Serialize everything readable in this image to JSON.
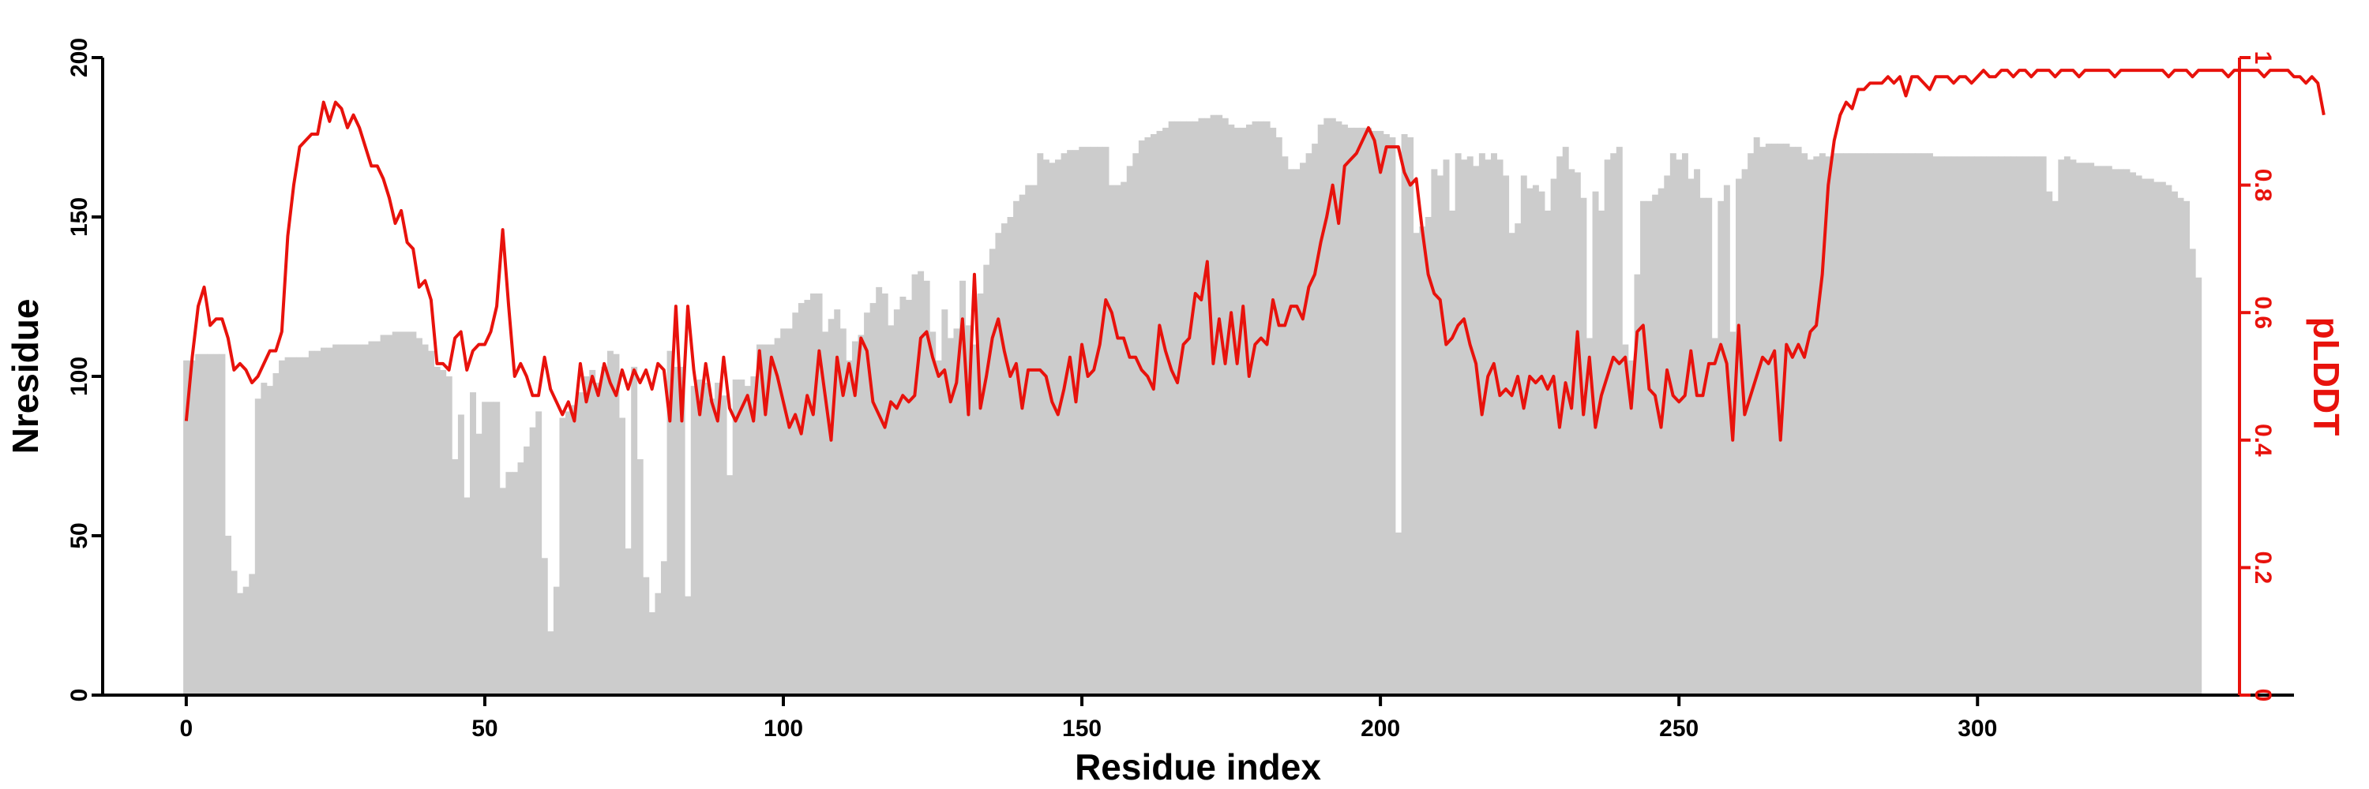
{
  "chart_data": {
    "type": "bar+line",
    "xlabel": "Residue index",
    "ylabel_left": "Nresidue",
    "ylabel_right": "pLDDT",
    "xlim": [
      -14,
      353
    ],
    "ylim_left": [
      0,
      200
    ],
    "ylim_right": [
      0,
      1
    ],
    "xticks": [
      0,
      50,
      100,
      150,
      200,
      250,
      300
    ],
    "yticks_left": [
      0,
      50,
      100,
      150,
      200
    ],
    "yticks_right": [
      0,
      0.2,
      0.4,
      0.6,
      0.8,
      1
    ],
    "grid": false,
    "bar_color": "#cccccc",
    "line_color": "#e8120c",
    "series": [
      {
        "name": "Nresidue",
        "type": "bar",
        "start_index": 0,
        "values": [
          105,
          105,
          107,
          107,
          107,
          107,
          107,
          50,
          39,
          32,
          34,
          38,
          93,
          98,
          97,
          101,
          105,
          106,
          106,
          106,
          106,
          108,
          108,
          109,
          109,
          110,
          110,
          110,
          110,
          110,
          110,
          111,
          111,
          113,
          113,
          114,
          114,
          114,
          114,
          112,
          110,
          108,
          103,
          102,
          100,
          74,
          88,
          62,
          95,
          82,
          92,
          92,
          92,
          65,
          70,
          70,
          73,
          78,
          84,
          89,
          43,
          20,
          34,
          87,
          89,
          91,
          95,
          100,
          102,
          98,
          103,
          108,
          107,
          87,
          46,
          103,
          74,
          37,
          26,
          32,
          42,
          108,
          103,
          103,
          31,
          97,
          99,
          98,
          93,
          98,
          94,
          69,
          99,
          99,
          97,
          100,
          110,
          110,
          110,
          112,
          115,
          115,
          120,
          123,
          124,
          126,
          126,
          114,
          118,
          121,
          115,
          105,
          111,
          113,
          120,
          123,
          128,
          126,
          116,
          121,
          125,
          124,
          132,
          133,
          130,
          114,
          105,
          121,
          112,
          115,
          130,
          116,
          110,
          126,
          135,
          140,
          145,
          148,
          150,
          155,
          157,
          160,
          160,
          170,
          168,
          167,
          168,
          170,
          171,
          171,
          172,
          172,
          172,
          172,
          172,
          160,
          160,
          161,
          166,
          170,
          174,
          175,
          176,
          177,
          178,
          180,
          180,
          180,
          180,
          180,
          181,
          181,
          182,
          182,
          181,
          179,
          178,
          178,
          179,
          180,
          180,
          180,
          178,
          175,
          169,
          165,
          165,
          167,
          170,
          173,
          179,
          181,
          181,
          180,
          179,
          178,
          178,
          178,
          178,
          177,
          177,
          176,
          175,
          51,
          176,
          175,
          145,
          147,
          150,
          165,
          163,
          168,
          152,
          170,
          168,
          169,
          166,
          170,
          168,
          170,
          168,
          163,
          145,
          148,
          163,
          159,
          160,
          158,
          152,
          162,
          169,
          172,
          165,
          164,
          156,
          112,
          158,
          152,
          168,
          170,
          172,
          110,
          105,
          132,
          155,
          155,
          157,
          159,
          163,
          170,
          168,
          170,
          162,
          165,
          156,
          156,
          112,
          155,
          160,
          114,
          162,
          165,
          170,
          175,
          172,
          173,
          173,
          173,
          173,
          172,
          172,
          170,
          168,
          169,
          170,
          169,
          170,
          170,
          170,
          170,
          170,
          170,
          170,
          170,
          170,
          170,
          170,
          170,
          170,
          170,
          170,
          170,
          170,
          169,
          169,
          169,
          169,
          169,
          169,
          169,
          169,
          169,
          169,
          169,
          169,
          169,
          169,
          169,
          169,
          169,
          169,
          169,
          158,
          155,
          168,
          169,
          168,
          167,
          167,
          167,
          166,
          166,
          166,
          165,
          165,
          165,
          164,
          163,
          162,
          162,
          161,
          161,
          160,
          158,
          156,
          155,
          140,
          131
        ]
      },
      {
        "name": "pLDDT",
        "type": "line",
        "start_index": 0,
        "values": [
          0.43,
          0.53,
          0.61,
          0.64,
          0.58,
          0.59,
          0.59,
          0.56,
          0.51,
          0.52,
          0.51,
          0.49,
          0.5,
          0.52,
          0.54,
          0.54,
          0.57,
          0.72,
          0.8,
          0.86,
          0.87,
          0.88,
          0.88,
          0.93,
          0.9,
          0.93,
          0.92,
          0.89,
          0.91,
          0.89,
          0.86,
          0.83,
          0.83,
          0.81,
          0.78,
          0.74,
          0.76,
          0.71,
          0.7,
          0.64,
          0.65,
          0.62,
          0.52,
          0.52,
          0.51,
          0.56,
          0.57,
          0.51,
          0.54,
          0.55,
          0.55,
          0.57,
          0.61,
          0.73,
          0.61,
          0.5,
          0.52,
          0.5,
          0.47,
          0.47,
          0.53,
          0.48,
          0.46,
          0.44,
          0.46,
          0.43,
          0.52,
          0.46,
          0.5,
          0.47,
          0.52,
          0.49,
          0.47,
          0.51,
          0.48,
          0.51,
          0.49,
          0.51,
          0.48,
          0.52,
          0.51,
          0.43,
          0.61,
          0.43,
          0.61,
          0.51,
          0.44,
          0.52,
          0.46,
          0.43,
          0.53,
          0.45,
          0.43,
          0.45,
          0.47,
          0.43,
          0.54,
          0.44,
          0.53,
          0.5,
          0.46,
          0.42,
          0.44,
          0.41,
          0.47,
          0.44,
          0.54,
          0.47,
          0.4,
          0.53,
          0.47,
          0.52,
          0.47,
          0.56,
          0.54,
          0.46,
          0.44,
          0.42,
          0.46,
          0.45,
          0.47,
          0.46,
          0.47,
          0.56,
          0.57,
          0.53,
          0.5,
          0.51,
          0.46,
          0.49,
          0.59,
          0.44,
          0.66,
          0.45,
          0.5,
          0.56,
          0.59,
          0.54,
          0.5,
          0.52,
          0.45,
          0.51,
          0.51,
          0.51,
          0.5,
          0.46,
          0.44,
          0.48,
          0.53,
          0.46,
          0.55,
          0.5,
          0.51,
          0.55,
          0.62,
          0.6,
          0.56,
          0.56,
          0.53,
          0.53,
          0.51,
          0.5,
          0.48,
          0.58,
          0.54,
          0.51,
          0.49,
          0.55,
          0.56,
          0.63,
          0.62,
          0.68,
          0.52,
          0.59,
          0.52,
          0.6,
          0.52,
          0.61,
          0.5,
          0.55,
          0.56,
          0.55,
          0.62,
          0.58,
          0.58,
          0.61,
          0.61,
          0.59,
          0.64,
          0.66,
          0.71,
          0.75,
          0.8,
          0.74,
          0.83,
          0.84,
          0.85,
          0.87,
          0.89,
          0.87,
          0.82,
          0.86,
          0.86,
          0.86,
          0.82,
          0.8,
          0.81,
          0.73,
          0.66,
          0.63,
          0.62,
          0.55,
          0.56,
          0.58,
          0.59,
          0.55,
          0.52,
          0.44,
          0.5,
          0.52,
          0.47,
          0.48,
          0.47,
          0.5,
          0.45,
          0.5,
          0.49,
          0.5,
          0.48,
          0.5,
          0.42,
          0.49,
          0.45,
          0.57,
          0.44,
          0.53,
          0.42,
          0.47,
          0.5,
          0.53,
          0.52,
          0.53,
          0.45,
          0.57,
          0.58,
          0.48,
          0.47,
          0.42,
          0.51,
          0.47,
          0.46,
          0.47,
          0.54,
          0.47,
          0.47,
          0.52,
          0.52,
          0.55,
          0.52,
          0.4,
          0.58,
          0.44,
          0.47,
          0.5,
          0.53,
          0.52,
          0.54,
          0.4,
          0.55,
          0.53,
          0.55,
          0.53,
          0.57,
          0.58,
          0.66,
          0.8,
          0.87,
          0.91,
          0.93,
          0.92,
          0.95,
          0.95,
          0.96,
          0.96,
          0.96,
          0.97,
          0.96,
          0.97,
          0.94,
          0.97,
          0.97,
          0.96,
          0.95,
          0.97,
          0.97,
          0.97,
          0.96,
          0.97,
          0.97,
          0.96,
          0.97,
          0.98,
          0.97,
          0.97,
          0.98,
          0.98,
          0.97,
          0.98,
          0.98,
          0.97,
          0.98,
          0.98,
          0.98,
          0.97,
          0.98,
          0.98,
          0.98,
          0.97,
          0.98,
          0.98,
          0.98,
          0.98,
          0.98,
          0.97,
          0.98,
          0.98,
          0.98,
          0.98,
          0.98,
          0.98,
          0.98,
          0.98,
          0.97,
          0.98,
          0.98,
          0.98,
          0.97,
          0.98,
          0.98,
          0.98,
          0.98,
          0.98,
          0.97,
          0.98,
          0.98,
          0.98,
          0.98,
          0.98,
          0.97,
          0.98,
          0.98,
          0.98,
          0.98,
          0.97,
          0.97,
          0.96,
          0.97,
          0.96,
          0.91
        ]
      }
    ]
  }
}
